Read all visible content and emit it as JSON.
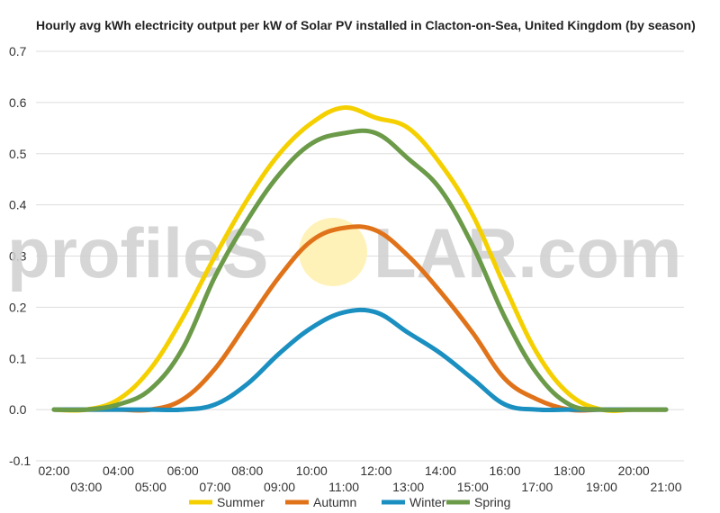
{
  "chart_data": {
    "type": "line",
    "title": "Hourly avg kWh electricity output per kW of Solar PV installed in Clacton-on-Sea, United Kingdom (by season)",
    "xlabel": "",
    "ylabel": "",
    "x": [
      "02:00",
      "03:00",
      "04:00",
      "05:00",
      "06:00",
      "07:00",
      "08:00",
      "09:00",
      "10:00",
      "11:00",
      "12:00",
      "13:00",
      "14:00",
      "15:00",
      "16:00",
      "17:00",
      "18:00",
      "19:00",
      "20:00",
      "21:00"
    ],
    "ylim": [
      -0.1,
      0.7
    ],
    "yticks": [
      "0.7",
      "0.6",
      "0.5",
      "0.4",
      "0.3",
      "0.2",
      "0.1",
      "0.0",
      "-0.1"
    ],
    "grid": true,
    "legend_position": "bottom",
    "series": [
      {
        "name": "Summer",
        "color": "#f5d000",
        "values": [
          0.0,
          0.0,
          0.02,
          0.08,
          0.18,
          0.3,
          0.41,
          0.5,
          0.56,
          0.59,
          0.57,
          0.55,
          0.48,
          0.38,
          0.24,
          0.11,
          0.03,
          0.0,
          0.0,
          0.0
        ]
      },
      {
        "name": "Autumn",
        "color": "#e0731a",
        "values": [
          0.0,
          0.0,
          0.0,
          0.0,
          0.02,
          0.08,
          0.17,
          0.26,
          0.33,
          0.355,
          0.35,
          0.3,
          0.23,
          0.15,
          0.06,
          0.02,
          0.0,
          0.0,
          0.0,
          0.0
        ]
      },
      {
        "name": "Winter",
        "color": "#1a8fc0",
        "values": [
          0.0,
          0.0,
          0.0,
          0.0,
          0.0,
          0.01,
          0.05,
          0.11,
          0.16,
          0.19,
          0.19,
          0.15,
          0.11,
          0.06,
          0.01,
          0.0,
          0.0,
          0.0,
          0.0,
          0.0
        ]
      },
      {
        "name": "Spring",
        "color": "#6b9a48",
        "values": [
          0.0,
          0.0,
          0.01,
          0.04,
          0.12,
          0.26,
          0.37,
          0.46,
          0.52,
          0.54,
          0.54,
          0.49,
          0.43,
          0.32,
          0.18,
          0.07,
          0.01,
          0.0,
          0.0,
          0.0
        ]
      }
    ]
  },
  "watermark": {
    "text_left": "profileS",
    "text_right": "LAR.com",
    "sun_color": "#fff2b8"
  }
}
